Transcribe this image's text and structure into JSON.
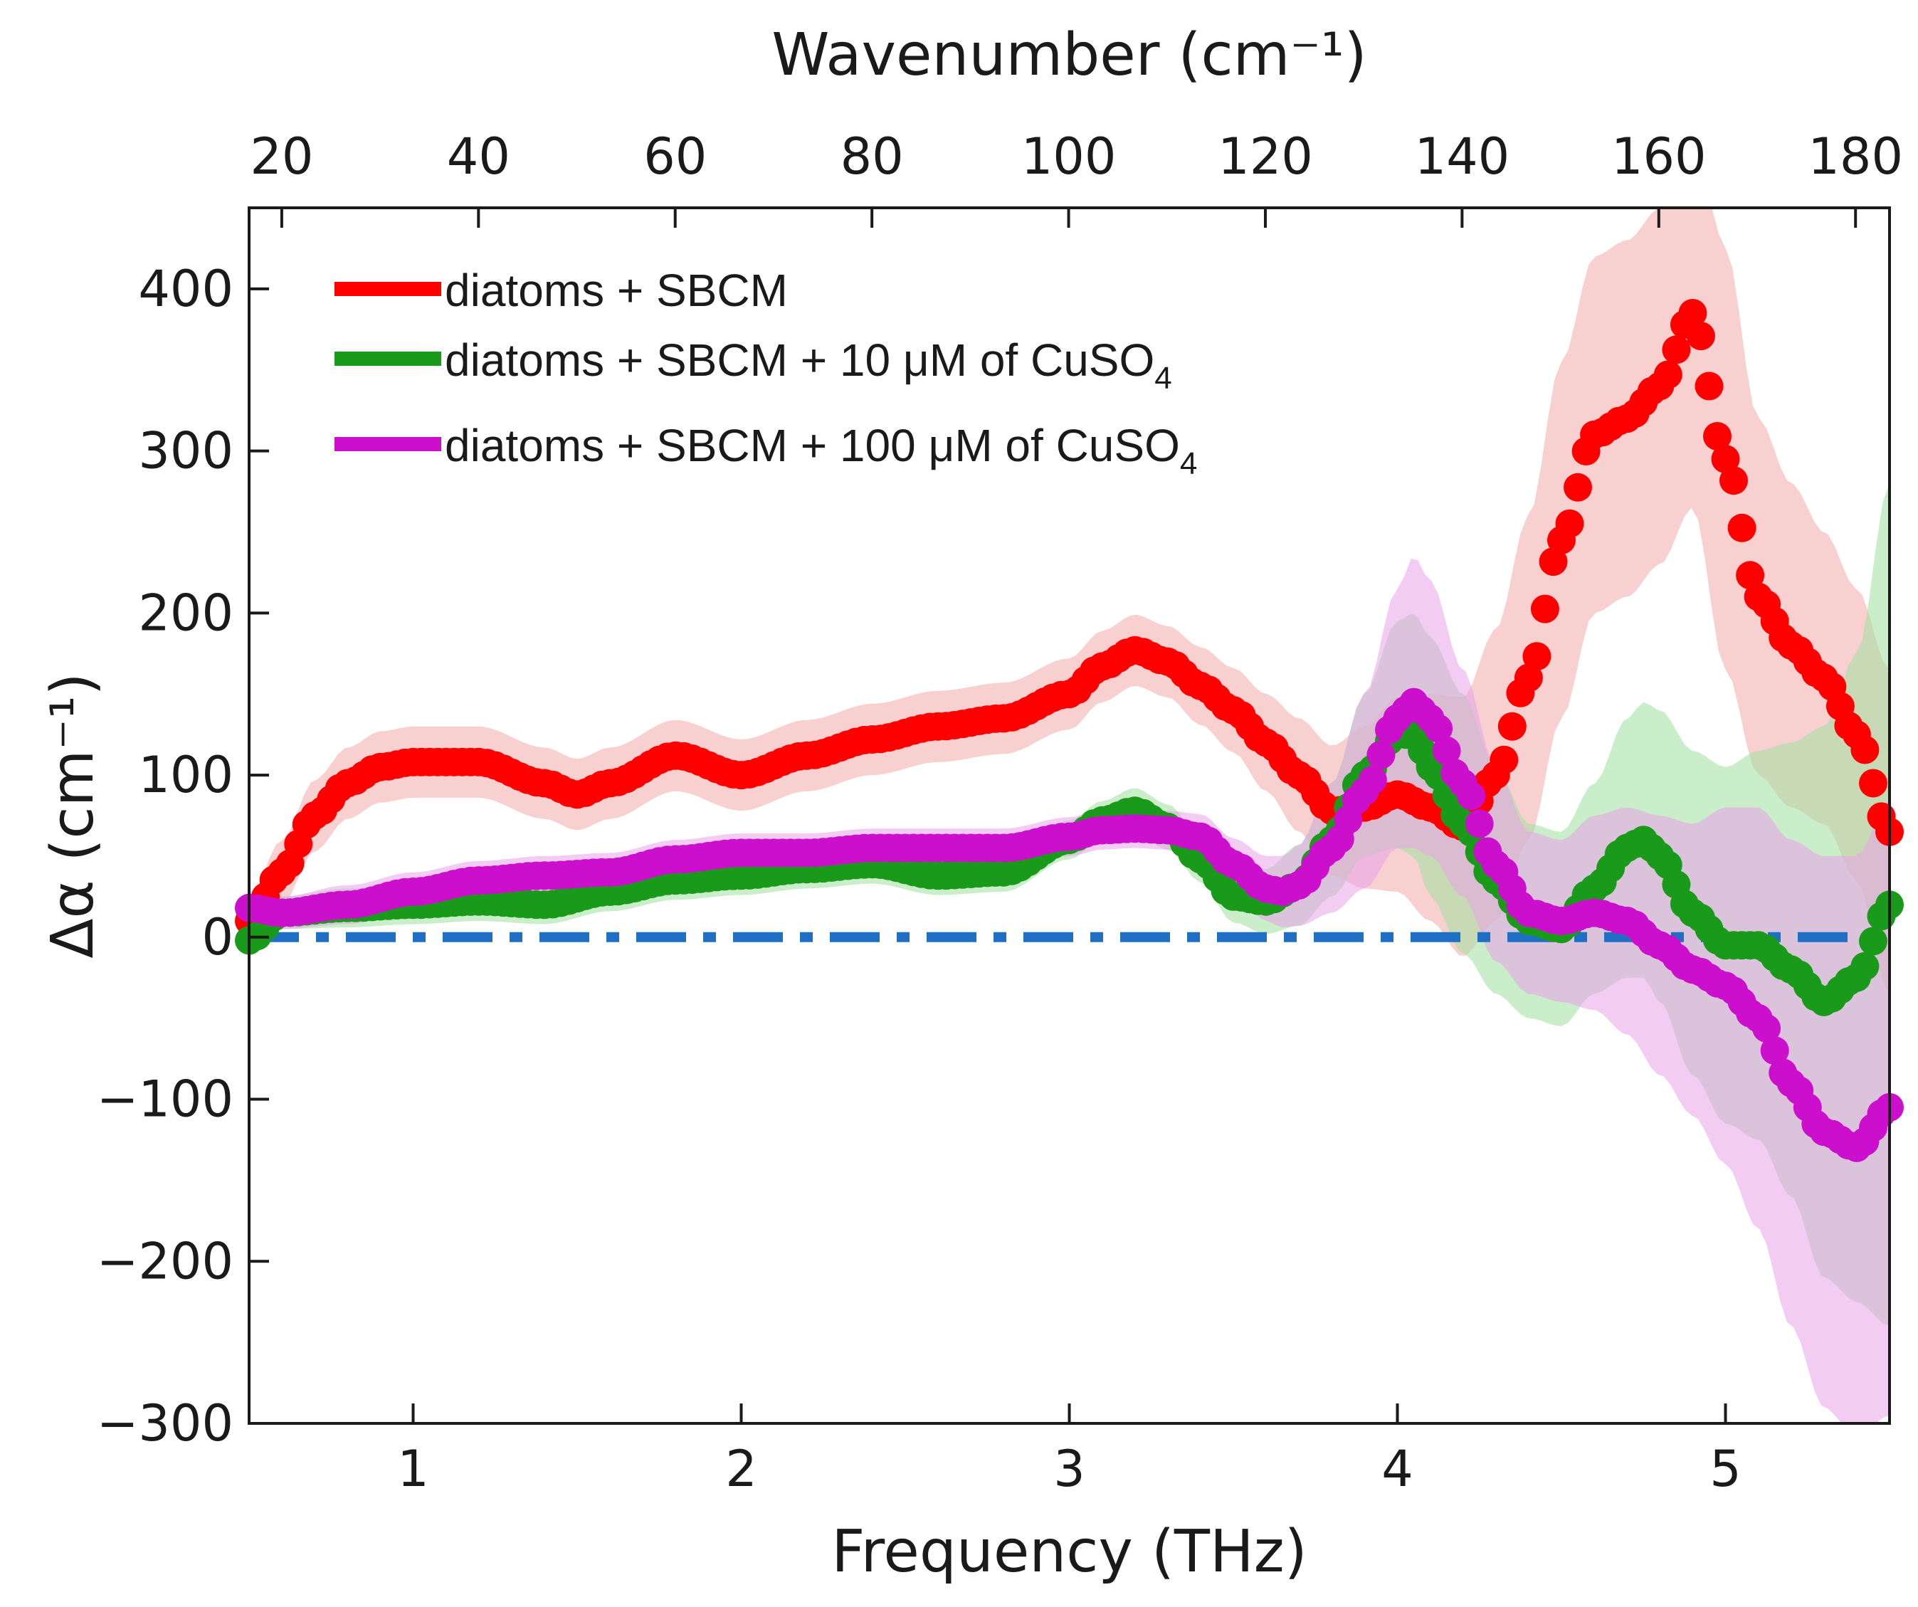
{
  "chart_data": {
    "type": "scatter",
    "title": "",
    "xlabel": "Frequency (THz)",
    "ylabel": "Δα (cm⁻¹)",
    "top_xlabel": "Wavenumber (cm⁻¹)",
    "xlim": [
      0.5,
      5.5
    ],
    "ylim": [
      -300,
      450
    ],
    "x_ticks": [
      1,
      2,
      3,
      4,
      5
    ],
    "x_tick_labels": [
      "1",
      "2",
      "3",
      "4",
      "5"
    ],
    "y_ticks": [
      -300,
      -200,
      -100,
      0,
      100,
      200,
      300,
      400
    ],
    "y_tick_labels": [
      "−300",
      "−200",
      "−100",
      "0",
      "100",
      "200",
      "300",
      "400"
    ],
    "top_ticks_cm": [
      20,
      40,
      60,
      80,
      100,
      120,
      140,
      160,
      180
    ],
    "top_tick_labels": [
      "20",
      "40",
      "60",
      "80",
      "100",
      "120",
      "140",
      "160",
      "180"
    ],
    "thz_to_cm": 33.356,
    "legend_position": "top-left",
    "reference_line": {
      "y": 0,
      "style": "dash-dot",
      "color": "#1f6fc4"
    },
    "series": [
      {
        "name": "diatoms + SBCM",
        "color": "#ff0000",
        "band_color": "#f4a9a9",
        "x": [
          0.5,
          0.6,
          0.7,
          0.8,
          0.9,
          1.0,
          1.2,
          1.4,
          1.5,
          1.6,
          1.8,
          2.0,
          2.2,
          2.4,
          2.6,
          2.8,
          3.0,
          3.1,
          3.2,
          3.3,
          3.4,
          3.5,
          3.6,
          3.7,
          3.8,
          3.9,
          4.0,
          4.1,
          4.2,
          4.3,
          4.4,
          4.5,
          4.6,
          4.7,
          4.8,
          4.9,
          5.0,
          5.1,
          5.2,
          5.3,
          5.4,
          5.5
        ],
        "y": [
          10,
          40,
          75,
          95,
          105,
          108,
          108,
          95,
          88,
          95,
          112,
          100,
          112,
          122,
          130,
          135,
          150,
          167,
          177,
          170,
          155,
          140,
          120,
          100,
          78,
          80,
          88,
          80,
          68,
          100,
          160,
          245,
          310,
          320,
          340,
          385,
          295,
          210,
          180,
          160,
          125,
          65
        ],
        "err": [
          15,
          20,
          22,
          22,
          22,
          22,
          22,
          22,
          22,
          22,
          22,
          22,
          22,
          22,
          22,
          22,
          22,
          22,
          22,
          22,
          24,
          26,
          30,
          35,
          40,
          50,
          60,
          70,
          80,
          90,
          100,
          110,
          110,
          110,
          110,
          120,
          130,
          110,
          100,
          90,
          90,
          100
        ]
      },
      {
        "name": "diatoms + SBCM + 10 μM of CuSO",
        "name_sub": "4",
        "color": "#1a9a1a",
        "band_color": "#9ee09e",
        "x": [
          0.5,
          0.6,
          0.8,
          1.0,
          1.2,
          1.4,
          1.6,
          1.8,
          2.0,
          2.2,
          2.4,
          2.6,
          2.8,
          3.0,
          3.1,
          3.2,
          3.3,
          3.4,
          3.5,
          3.6,
          3.7,
          3.8,
          3.9,
          4.0,
          4.05,
          4.1,
          4.2,
          4.3,
          4.4,
          4.5,
          4.6,
          4.7,
          4.75,
          4.8,
          4.9,
          5.0,
          5.1,
          5.2,
          5.3,
          5.4,
          5.5
        ],
        "y": [
          -2,
          15,
          18,
          20,
          22,
          20,
          28,
          35,
          38,
          42,
          45,
          38,
          40,
          60,
          72,
          78,
          68,
          48,
          25,
          22,
          32,
          60,
          100,
          125,
          125,
          105,
          70,
          35,
          10,
          5,
          30,
          55,
          60,
          50,
          15,
          -5,
          -5,
          -20,
          -40,
          -25,
          20
        ],
        "err": [
          10,
          10,
          12,
          12,
          12,
          12,
          12,
          12,
          12,
          12,
          12,
          12,
          12,
          12,
          12,
          14,
          14,
          14,
          16,
          20,
          25,
          35,
          50,
          70,
          75,
          80,
          80,
          70,
          60,
          60,
          65,
          80,
          85,
          90,
          100,
          110,
          120,
          140,
          170,
          200,
          260
        ]
      },
      {
        "name": "diatoms + SBCM + 100 μM of CuSO",
        "name_sub": "4",
        "color": "#cc0fcc",
        "band_color": "#e9a3e9",
        "x": [
          0.5,
          0.6,
          0.8,
          1.0,
          1.2,
          1.4,
          1.6,
          1.8,
          2.0,
          2.2,
          2.4,
          2.6,
          2.8,
          3.0,
          3.1,
          3.2,
          3.3,
          3.4,
          3.5,
          3.6,
          3.65,
          3.7,
          3.8,
          3.9,
          4.0,
          4.05,
          4.1,
          4.2,
          4.3,
          4.4,
          4.5,
          4.6,
          4.7,
          4.8,
          4.9,
          5.0,
          5.1,
          5.2,
          5.3,
          5.4,
          5.5
        ],
        "y": [
          18,
          15,
          20,
          28,
          35,
          38,
          40,
          48,
          52,
          52,
          55,
          55,
          55,
          62,
          66,
          67,
          66,
          62,
          45,
          30,
          28,
          32,
          55,
          90,
          135,
          145,
          135,
          95,
          45,
          15,
          10,
          15,
          10,
          -5,
          -20,
          -30,
          -50,
          -90,
          -120,
          -130,
          -105
        ],
        "err": [
          10,
          10,
          12,
          12,
          12,
          12,
          12,
          12,
          12,
          12,
          12,
          12,
          12,
          12,
          12,
          12,
          12,
          14,
          16,
          20,
          22,
          25,
          40,
          60,
          80,
          90,
          85,
          70,
          60,
          50,
          50,
          60,
          70,
          80,
          90,
          110,
          130,
          150,
          170,
          180,
          190
        ]
      }
    ]
  }
}
